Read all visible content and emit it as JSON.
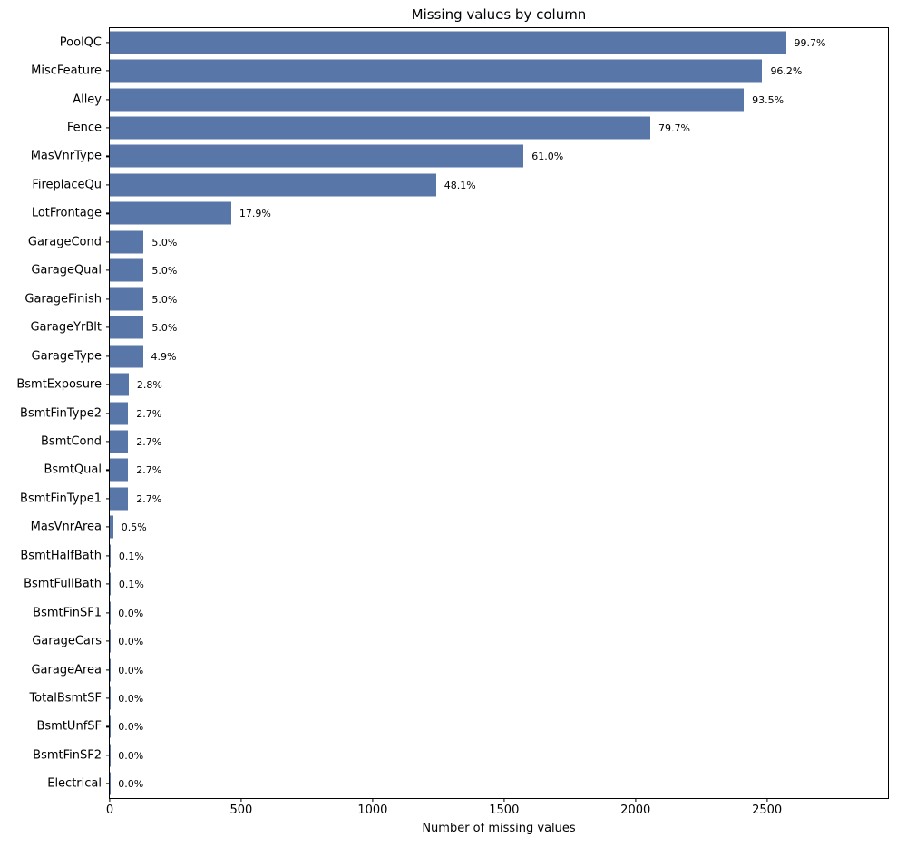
{
  "figure": {
    "background": "#ffffff"
  },
  "chart_data": {
    "type": "bar",
    "orientation": "horizontal",
    "title": "Missing values by column",
    "xlabel": "Number of missing values",
    "ylabel": "",
    "grid": false,
    "legend": null,
    "bar_color": "#5877a8",
    "spine_color": "#000000",
    "text_color": "#000000",
    "xlim": [
      0,
      2960
    ],
    "x_ticks": [
      0,
      500,
      1000,
      1500,
      2000,
      2500
    ],
    "categories": [
      "PoolQC",
      "MiscFeature",
      "Alley",
      "Fence",
      "MasVnrType",
      "FireplaceQu",
      "LotFrontage",
      "GarageCond",
      "GarageQual",
      "GarageFinish",
      "GarageYrBlt",
      "GarageType",
      "BsmtExposure",
      "BsmtFinType2",
      "BsmtCond",
      "BsmtQual",
      "BsmtFinType1",
      "MasVnrArea",
      "BsmtHalfBath",
      "BsmtFullBath",
      "BsmtFinSF1",
      "GarageCars",
      "GarageArea",
      "TotalBsmtSF",
      "BsmtUnfSF",
      "BsmtFinSF2",
      "Electrical"
    ],
    "values": [
      2572,
      2482,
      2412,
      2056,
      1574,
      1241,
      462,
      129,
      129,
      129,
      129,
      126,
      72,
      70,
      70,
      70,
      70,
      13,
      3,
      3,
      1,
      1,
      1,
      1,
      1,
      1,
      1
    ],
    "pct_labels": [
      "99.7%",
      "96.2%",
      "93.5%",
      "79.7%",
      "61.0%",
      "48.1%",
      "17.9%",
      "5.0%",
      "5.0%",
      "5.0%",
      "5.0%",
      "4.9%",
      "2.8%",
      "2.7%",
      "2.7%",
      "2.7%",
      "2.7%",
      "0.5%",
      "0.1%",
      "0.1%",
      "0.0%",
      "0.0%",
      "0.0%",
      "0.0%",
      "0.0%",
      "0.0%",
      "0.0%"
    ]
  }
}
